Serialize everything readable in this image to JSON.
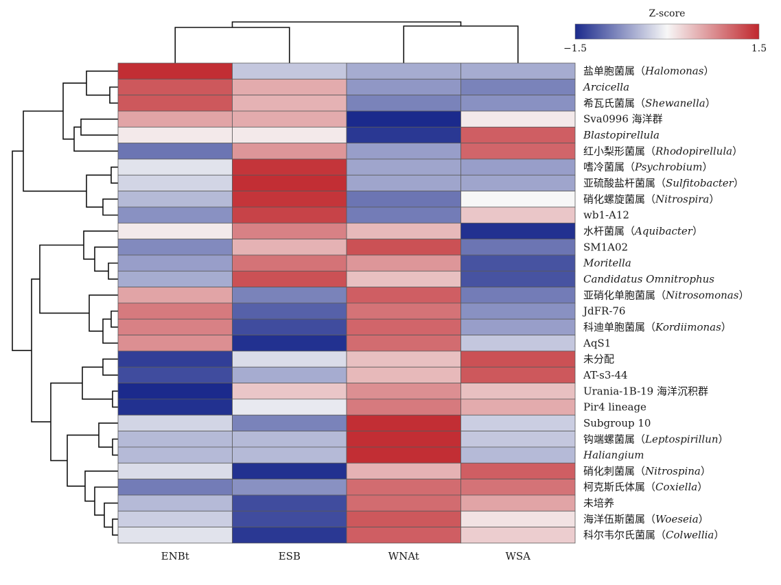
{
  "chart_data": {
    "type": "heatmap",
    "legend": {
      "title": "Z-score",
      "min_label": "−1.5",
      "max_label": "1.5",
      "range": [
        -1.5,
        1.5
      ],
      "colors": [
        "#1b2a8c",
        "#ffffff",
        "#c0272d"
      ]
    },
    "columns": [
      "ENBt",
      "ESB",
      "WNAt",
      "WSA"
    ],
    "rows": [
      {
        "zh": "盐单胞菌属（",
        "it": "Halomonas",
        "end": "）",
        "values": [
          1.45,
          -0.35,
          -0.55,
          -0.55
        ]
      },
      {
        "zh": "",
        "it": "Arcicella",
        "end": "",
        "values": [
          1.15,
          0.55,
          -0.7,
          -0.85
        ]
      },
      {
        "zh": "希瓦氏菌属（",
        "it": "Shewanella",
        "end": "）",
        "values": [
          1.15,
          0.5,
          -0.85,
          -0.75
        ]
      },
      {
        "zh": "Sva0996 海洋群",
        "it": "",
        "end": "",
        "values": [
          0.6,
          0.55,
          -1.5,
          0.1
        ]
      },
      {
        "zh": "",
        "it": "Blastopirellula",
        "end": "",
        "values": [
          0.1,
          0.1,
          -1.4,
          1.1
        ]
      },
      {
        "zh": "红小梨形菌属（",
        "it": "Rhodopirellula",
        "end": "）",
        "values": [
          -0.95,
          0.7,
          -0.65,
          1.05
        ]
      },
      {
        "zh": "嗜冷菌属（",
        "it": "Psychrobium",
        "end": "）",
        "values": [
          -0.15,
          1.4,
          -0.6,
          -0.65
        ]
      },
      {
        "zh": "亚硫酸盐杆菌属（",
        "it": "Sulfitobacter",
        "end": "）",
        "values": [
          -0.25,
          1.45,
          -0.6,
          -0.6
        ]
      },
      {
        "zh": "硝化螺旋菌属（",
        "it": "Nitrospira",
        "end": "）",
        "values": [
          -0.45,
          1.4,
          -0.95,
          0.0
        ]
      },
      {
        "zh": "wb1-A12",
        "it": "",
        "end": "",
        "values": [
          -0.75,
          1.3,
          -0.9,
          0.35
        ]
      },
      {
        "zh": "水杆菌属（",
        "it": "Aquibacter",
        "end": "）",
        "values": [
          0.1,
          0.85,
          0.45,
          -1.45
        ]
      },
      {
        "zh": "SM1A02",
        "it": "",
        "end": "",
        "values": [
          -0.8,
          0.5,
          1.2,
          -0.95
        ]
      },
      {
        "zh": "",
        "it": "Moritella",
        "end": "",
        "values": [
          -0.65,
          0.95,
          0.7,
          -1.2
        ]
      },
      {
        "zh": "",
        "it": "Candidatus Omnitrophus",
        "end": "",
        "values": [
          -0.55,
          1.2,
          0.4,
          -1.2
        ]
      },
      {
        "zh": "亚硝化单胞菌属（",
        "it": "Nitrosomonas",
        "end": "）",
        "values": [
          0.6,
          -0.85,
          1.1,
          -0.9
        ]
      },
      {
        "zh": "JdFR-76",
        "it": "",
        "end": "",
        "values": [
          0.9,
          -1.1,
          0.95,
          -0.75
        ]
      },
      {
        "zh": "科迪单胞菌属（",
        "it": "Kordiimonas",
        "end": "）",
        "values": [
          0.85,
          -1.25,
          1.05,
          -0.65
        ]
      },
      {
        "zh": "AqS1",
        "it": "",
        "end": "",
        "values": [
          0.75,
          -1.45,
          1.0,
          -0.35
        ]
      },
      {
        "zh": "未分配",
        "it": "",
        "end": "",
        "values": [
          -1.35,
          -0.2,
          0.4,
          1.2
        ]
      },
      {
        "zh": "AT-s3-44",
        "it": "",
        "end": "",
        "values": [
          -1.25,
          -0.55,
          0.45,
          1.15
        ]
      },
      {
        "zh": "Urania-1B-19 海洋沉积群",
        "it": "",
        "end": "",
        "values": [
          -1.5,
          0.35,
          0.75,
          0.4
        ]
      },
      {
        "zh": "Pir4 lineage",
        "it": "",
        "end": "",
        "values": [
          -1.45,
          -0.1,
          0.9,
          0.55
        ]
      },
      {
        "zh": "Subgroup 10",
        "it": "",
        "end": "",
        "values": [
          -0.25,
          -0.85,
          1.45,
          -0.3
        ]
      },
      {
        "zh": "钩端螺菌属（",
        "it": "Leptospirillun",
        "end": "）",
        "values": [
          -0.45,
          -0.45,
          1.45,
          -0.35
        ]
      },
      {
        "zh": "",
        "it": "Haliangium",
        "end": "",
        "values": [
          -0.45,
          -0.45,
          1.45,
          -0.45
        ]
      },
      {
        "zh": "硝化刺菌属（",
        "it": "Nitrospina",
        "end": "）",
        "values": [
          -0.2,
          -1.45,
          0.5,
          1.1
        ]
      },
      {
        "zh": "柯克斯氏体属（",
        "it": "Coxiella",
        "end": "）",
        "values": [
          -0.9,
          -0.75,
          1.0,
          0.95
        ]
      },
      {
        "zh": "未培养",
        "it": "",
        "end": "",
        "values": [
          -0.45,
          -1.25,
          1.0,
          0.6
        ]
      },
      {
        "zh": "海洋伍斯菌属（",
        "it": "Woeseia",
        "end": "）",
        "values": [
          -0.3,
          -1.25,
          1.15,
          0.15
        ]
      },
      {
        "zh": "科尔韦尔氏菌属（",
        "it": "Colwellia",
        "end": "）",
        "values": [
          -0.15,
          -1.4,
          1.1,
          0.3
        ]
      }
    ],
    "col_dendrogram": [
      [
        [
          0,
          1
        ],
        [
          2,
          3
        ]
      ]
    ],
    "row_dendrogram_note": "hierarchical clustering tree drawn on the left of rows"
  }
}
